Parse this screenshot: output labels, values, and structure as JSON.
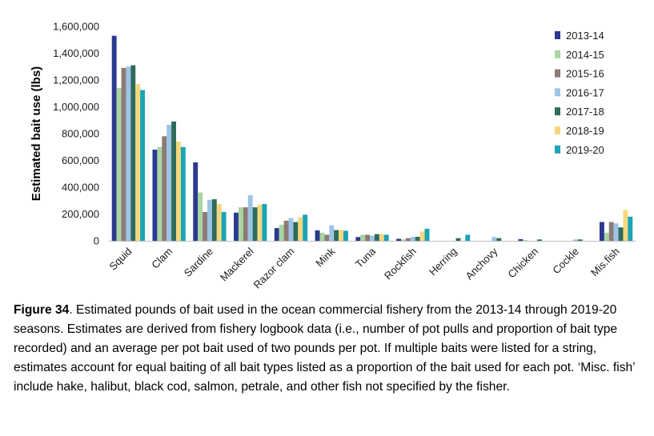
{
  "chart_data": {
    "type": "bar",
    "title": "",
    "xlabel": "",
    "ylabel": "Estimated bait use (lbs)",
    "ylim": [
      0,
      1600000
    ],
    "yticks": [
      "0",
      "200,000",
      "400,000",
      "600,000",
      "800,000",
      "1,000,000",
      "1,200,000",
      "1,400,000",
      "1,600,000"
    ],
    "grid": false,
    "legend_position": "top-right",
    "categories": [
      "Squid",
      "Clam",
      "Sardine",
      "Mackerel",
      "Razor clam",
      "Mink",
      "Tuna",
      "Rockfish",
      "Herring",
      "Anchovy",
      "Chicken",
      "Cockle",
      "Mis.fish"
    ],
    "series": [
      {
        "name": "2013-14",
        "color": "#2B3990",
        "values": [
          1530000,
          680000,
          585000,
          210000,
          95000,
          78000,
          28000,
          15000,
          0,
          0,
          12000,
          0,
          140000
        ]
      },
      {
        "name": "2014-15",
        "color": "#A8D5A2",
        "values": [
          1140000,
          700000,
          360000,
          250000,
          120000,
          60000,
          45000,
          10000,
          0,
          0,
          5000,
          0,
          60000
        ]
      },
      {
        "name": "2015-16",
        "color": "#8C7B75",
        "values": [
          1290000,
          780000,
          215000,
          250000,
          150000,
          45000,
          45000,
          20000,
          0,
          0,
          0,
          0,
          140000
        ]
      },
      {
        "name": "2016-17",
        "color": "#9DC3E6",
        "values": [
          1300000,
          865000,
          305000,
          340000,
          170000,
          115000,
          38000,
          30000,
          0,
          28000,
          0,
          10000,
          130000
        ]
      },
      {
        "name": "2017-18",
        "color": "#2E6B5B",
        "values": [
          1310000,
          890000,
          310000,
          250000,
          140000,
          80000,
          50000,
          30000,
          20000,
          20000,
          10000,
          10000,
          100000
        ]
      },
      {
        "name": "2018-19",
        "color": "#F6D77E",
        "values": [
          1170000,
          740000,
          275000,
          270000,
          175000,
          80000,
          50000,
          70000,
          0,
          0,
          0,
          0,
          230000
        ]
      },
      {
        "name": "2019-20",
        "color": "#1AA4B5",
        "values": [
          1125000,
          700000,
          215000,
          275000,
          195000,
          75000,
          45000,
          90000,
          45000,
          0,
          0,
          0,
          180000
        ]
      }
    ]
  },
  "caption": {
    "label": "Figure 34",
    "text": ".  Estimated pounds of bait used in the ocean commercial fishery from the 2013-14 through 2019-20 seasons. Estimates are derived from fishery logbook data (i.e., number of pot pulls and proportion of bait type recorded) and an average per pot bait used of two pounds per pot. If multiple baits were listed for a string, estimates account for equal baiting of all bait types listed as a proportion of the bait used for each pot. ‘Misc. fish’ include hake, halibut, black cod, salmon, petrale, and other fish not specified by the fisher."
  }
}
